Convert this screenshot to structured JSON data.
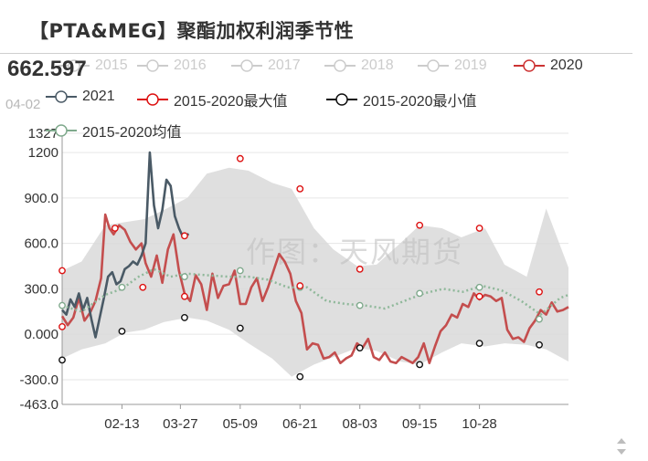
{
  "title": "【PTA&MEG】聚酯加权利润季节性",
  "tooltip": {
    "value": "662.597",
    "date": "04-02"
  },
  "watermark": "作图：天风期货",
  "legend": [
    {
      "name": "2015",
      "color": "#cccccc",
      "active": false
    },
    {
      "name": "2016",
      "color": "#cccccc",
      "active": false
    },
    {
      "name": "2017",
      "color": "#cccccc",
      "active": false
    },
    {
      "name": "2018",
      "color": "#cccccc",
      "active": false
    },
    {
      "name": "2019",
      "color": "#cccccc",
      "active": false
    },
    {
      "name": "2020",
      "color": "#cc3333",
      "active": true
    },
    {
      "name": "2021",
      "color": "#4a5a66",
      "active": true
    },
    {
      "name": "2015-2020最大值",
      "color": "#dd1111",
      "active": true
    },
    {
      "name": "2015-2020最小值",
      "color": "#111111",
      "active": true
    },
    {
      "name": "2015-2020均值",
      "color": "#7fa98c",
      "active": true
    }
  ],
  "chart_data": {
    "type": "line",
    "x_range": [
      "01-01",
      "12-31"
    ],
    "x_ticks": [
      "02-13",
      "03-27",
      "05-09",
      "06-21",
      "08-03",
      "09-15",
      "10-28"
    ],
    "y_ticks": [
      "1327",
      "1200",
      "900.0",
      "600.0",
      "300.0",
      "0.000",
      "-300.0",
      "-463.0"
    ],
    "ylim": [
      -463,
      1327
    ],
    "series": [
      {
        "name": "2020",
        "color": "#c44e4e",
        "points": [
          [
            "01-01",
            120
          ],
          [
            "01-05",
            60
          ],
          [
            "01-09",
            110
          ],
          [
            "01-13",
            240
          ],
          [
            "01-17",
            90
          ],
          [
            "01-21",
            140
          ],
          [
            "01-25",
            220
          ],
          [
            "01-29",
            370
          ],
          [
            "02-01",
            790
          ],
          [
            "02-04",
            700
          ],
          [
            "02-07",
            660
          ],
          [
            "02-11",
            720
          ],
          [
            "02-15",
            690
          ],
          [
            "02-19",
            610
          ],
          [
            "02-23",
            560
          ],
          [
            "02-27",
            600
          ],
          [
            "03-02",
            470
          ],
          [
            "03-06",
            380
          ],
          [
            "03-10",
            520
          ],
          [
            "03-14",
            340
          ],
          [
            "03-18",
            560
          ],
          [
            "03-22",
            660
          ],
          [
            "03-26",
            420
          ],
          [
            "03-30",
            270
          ],
          [
            "04-03",
            220
          ],
          [
            "04-07",
            390
          ],
          [
            "04-11",
            330
          ],
          [
            "04-15",
            160
          ],
          [
            "04-19",
            400
          ],
          [
            "04-23",
            240
          ],
          [
            "04-27",
            320
          ],
          [
            "05-01",
            330
          ],
          [
            "05-05",
            420
          ],
          [
            "05-09",
            200
          ],
          [
            "05-13",
            200
          ],
          [
            "05-17",
            310
          ],
          [
            "05-21",
            370
          ],
          [
            "05-25",
            220
          ],
          [
            "05-29",
            310
          ],
          [
            "06-02",
            420
          ],
          [
            "06-06",
            530
          ],
          [
            "06-10",
            480
          ],
          [
            "06-14",
            400
          ],
          [
            "06-18",
            220
          ],
          [
            "06-22",
            140
          ],
          [
            "06-26",
            -100
          ],
          [
            "06-30",
            -60
          ],
          [
            "07-04",
            -70
          ],
          [
            "07-08",
            -160
          ],
          [
            "07-12",
            -150
          ],
          [
            "07-16",
            -120
          ],
          [
            "07-20",
            -190
          ],
          [
            "07-24",
            -160
          ],
          [
            "07-28",
            -140
          ],
          [
            "08-01",
            -60
          ],
          [
            "08-05",
            -90
          ],
          [
            "08-09",
            -30
          ],
          [
            "08-13",
            -150
          ],
          [
            "08-17",
            -170
          ],
          [
            "08-21",
            -120
          ],
          [
            "08-25",
            -180
          ],
          [
            "08-29",
            -190
          ],
          [
            "09-02",
            -150
          ],
          [
            "09-06",
            -170
          ],
          [
            "09-10",
            -190
          ],
          [
            "09-14",
            -150
          ],
          [
            "09-18",
            -60
          ],
          [
            "09-22",
            -190
          ],
          [
            "09-26",
            -80
          ],
          [
            "09-30",
            20
          ],
          [
            "10-04",
            60
          ],
          [
            "10-08",
            130
          ],
          [
            "10-12",
            110
          ],
          [
            "10-16",
            200
          ],
          [
            "10-20",
            180
          ],
          [
            "10-24",
            270
          ],
          [
            "10-28",
            230
          ],
          [
            "11-01",
            260
          ],
          [
            "11-05",
            250
          ],
          [
            "11-09",
            220
          ],
          [
            "11-13",
            240
          ],
          [
            "11-17",
            30
          ],
          [
            "11-21",
            -30
          ],
          [
            "11-25",
            -20
          ],
          [
            "11-29",
            -50
          ],
          [
            "12-03",
            40
          ],
          [
            "12-07",
            90
          ],
          [
            "12-11",
            160
          ],
          [
            "12-15",
            130
          ],
          [
            "12-19",
            210
          ],
          [
            "12-23",
            150
          ],
          [
            "12-27",
            160
          ],
          [
            "12-31",
            180
          ]
        ]
      },
      {
        "name": "2021",
        "color": "#4a5a66",
        "points": [
          [
            "01-01",
            160
          ],
          [
            "01-04",
            130
          ],
          [
            "01-07",
            230
          ],
          [
            "01-10",
            180
          ],
          [
            "01-13",
            270
          ],
          [
            "01-16",
            160
          ],
          [
            "01-19",
            240
          ],
          [
            "01-22",
            100
          ],
          [
            "01-25",
            -20
          ],
          [
            "01-28",
            110
          ],
          [
            "01-31",
            240
          ],
          [
            "02-03",
            380
          ],
          [
            "02-06",
            410
          ],
          [
            "02-09",
            330
          ],
          [
            "02-12",
            350
          ],
          [
            "02-15",
            430
          ],
          [
            "02-18",
            450
          ],
          [
            "02-21",
            480
          ],
          [
            "02-24",
            460
          ],
          [
            "02-27",
            520
          ],
          [
            "03-02",
            600
          ],
          [
            "03-05",
            1200
          ],
          [
            "03-08",
            850
          ],
          [
            "03-11",
            700
          ],
          [
            "03-14",
            820
          ],
          [
            "03-17",
            1020
          ],
          [
            "03-20",
            980
          ],
          [
            "03-23",
            780
          ],
          [
            "03-26",
            700
          ],
          [
            "03-29",
            640
          ],
          [
            "04-02",
            663
          ]
        ]
      },
      {
        "name": "2015-2020均值",
        "color": "#8fb89a",
        "dashed": true,
        "points": [
          [
            "01-01",
            190
          ],
          [
            "01-15",
            150
          ],
          [
            "02-01",
            260
          ],
          [
            "02-13",
            300
          ],
          [
            "02-25",
            380
          ],
          [
            "03-08",
            430
          ],
          [
            "03-20",
            380
          ],
          [
            "04-01",
            400
          ],
          [
            "04-15",
            390
          ],
          [
            "05-01",
            380
          ],
          [
            "05-15",
            380
          ],
          [
            "05-29",
            360
          ],
          [
            "06-12",
            310
          ],
          [
            "06-26",
            310
          ],
          [
            "07-10",
            220
          ],
          [
            "07-24",
            200
          ],
          [
            "08-07",
            190
          ],
          [
            "08-21",
            170
          ],
          [
            "09-04",
            220
          ],
          [
            "09-18",
            270
          ],
          [
            "10-02",
            300
          ],
          [
            "10-16",
            280
          ],
          [
            "10-30",
            320
          ],
          [
            "11-13",
            290
          ],
          [
            "11-27",
            220
          ],
          [
            "12-11",
            130
          ],
          [
            "12-25",
            240
          ],
          [
            "12-31",
            260
          ]
        ]
      }
    ],
    "band": {
      "name": "2015-2020 range",
      "color": "#d9d9d9",
      "upper": [
        [
          "01-01",
          420
        ],
        [
          "01-15",
          480
        ],
        [
          "02-01",
          720
        ],
        [
          "02-15",
          740
        ],
        [
          "03-01",
          760
        ],
        [
          "03-15",
          820
        ],
        [
          "04-01",
          900
        ],
        [
          "04-15",
          1060
        ],
        [
          "05-01",
          1100
        ],
        [
          "05-15",
          1080
        ],
        [
          "06-01",
          1000
        ],
        [
          "06-15",
          960
        ],
        [
          "07-01",
          700
        ],
        [
          "07-15",
          560
        ],
        [
          "08-01",
          450
        ],
        [
          "08-15",
          460
        ],
        [
          "09-01",
          600
        ],
        [
          "09-15",
          720
        ],
        [
          "10-01",
          700
        ],
        [
          "10-15",
          640
        ],
        [
          "11-01",
          700
        ],
        [
          "11-15",
          460
        ],
        [
          "12-01",
          380
        ],
        [
          "12-15",
          830
        ],
        [
          "12-31",
          440
        ]
      ],
      "lower": [
        [
          "01-01",
          -160
        ],
        [
          "01-15",
          -100
        ],
        [
          "02-01",
          -60
        ],
        [
          "02-15",
          10
        ],
        [
          "03-01",
          30
        ],
        [
          "03-15",
          80
        ],
        [
          "04-01",
          110
        ],
        [
          "04-15",
          90
        ],
        [
          "05-01",
          30
        ],
        [
          "05-15",
          -60
        ],
        [
          "06-01",
          -160
        ],
        [
          "06-15",
          -280
        ],
        [
          "07-01",
          -200
        ],
        [
          "07-15",
          -150
        ],
        [
          "08-01",
          -90
        ],
        [
          "08-15",
          -110
        ],
        [
          "09-01",
          -180
        ],
        [
          "09-15",
          -200
        ],
        [
          "10-01",
          -120
        ],
        [
          "10-15",
          -60
        ],
        [
          "11-01",
          -80
        ],
        [
          "11-15",
          -60
        ],
        [
          "12-01",
          -70
        ],
        [
          "12-15",
          -100
        ],
        [
          "12-31",
          -180
        ]
      ]
    },
    "max_markers": [
      [
        "01-01",
        420
      ],
      [
        "02-08",
        700
      ],
      [
        "02-28",
        310
      ],
      [
        "03-30",
        650
      ],
      [
        "03-30",
        250
      ],
      [
        "05-09",
        1160
      ],
      [
        "06-21",
        960
      ],
      [
        "06-21",
        320
      ],
      [
        "08-03",
        430
      ],
      [
        "09-15",
        720
      ],
      [
        "10-28",
        700
      ],
      [
        "10-28",
        250
      ],
      [
        "12-10",
        280
      ],
      [
        "01-01",
        50
      ]
    ],
    "min_markers": [
      [
        "01-01",
        -170
      ],
      [
        "02-13",
        20
      ],
      [
        "03-30",
        110
      ],
      [
        "05-09",
        40
      ],
      [
        "06-21",
        -280
      ],
      [
        "08-03",
        -90
      ],
      [
        "09-15",
        -200
      ],
      [
        "10-28",
        -60
      ],
      [
        "12-10",
        -70
      ]
    ],
    "mean_markers": [
      [
        "01-01",
        190
      ],
      [
        "02-13",
        310
      ],
      [
        "03-30",
        380
      ],
      [
        "05-09",
        420
      ],
      [
        "06-21",
        310
      ],
      [
        "08-03",
        190
      ],
      [
        "09-15",
        270
      ],
      [
        "10-28",
        310
      ],
      [
        "12-10",
        100
      ]
    ]
  }
}
